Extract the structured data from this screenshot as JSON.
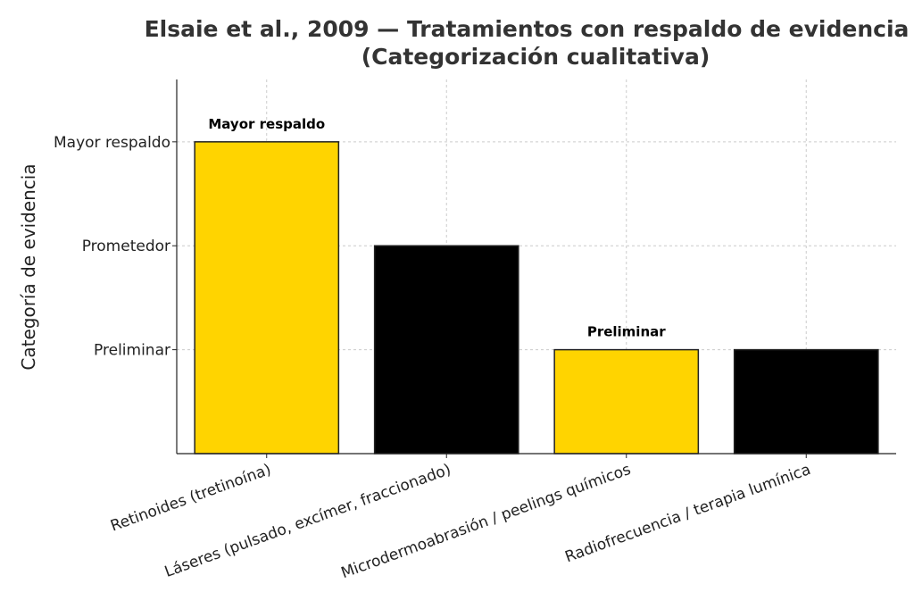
{
  "chart_data": {
    "type": "bar",
    "title": "Elsaie et al., 2009 — Tratamientos con respaldo de evidencia",
    "subtitle": "(Categorización cualitativa)",
    "ylabel": "Categoría de evidencia",
    "xlabel": "",
    "categories": [
      "Retinoides (tretinoína)",
      "Láseres (pulsado, excímer, fraccionado)",
      "Microdermoabrasión / peelings químicos",
      "Radiofrecuencia / terapia lumínica"
    ],
    "values": [
      3,
      2,
      1,
      1
    ],
    "y_tick_values": [
      1,
      2,
      3
    ],
    "y_tick_labels": [
      "Preliminar",
      "Prometedor",
      "Mayor respaldo"
    ],
    "ylim": [
      0,
      3.6
    ],
    "colors": [
      "#FFD400",
      "#000000",
      "#FFD400",
      "#000000"
    ],
    "annotations": [
      {
        "category_index": 0,
        "text": "Mayor respaldo"
      },
      {
        "category_index": 2,
        "text": "Preliminar"
      }
    ],
    "grid": true,
    "legend": "none"
  }
}
